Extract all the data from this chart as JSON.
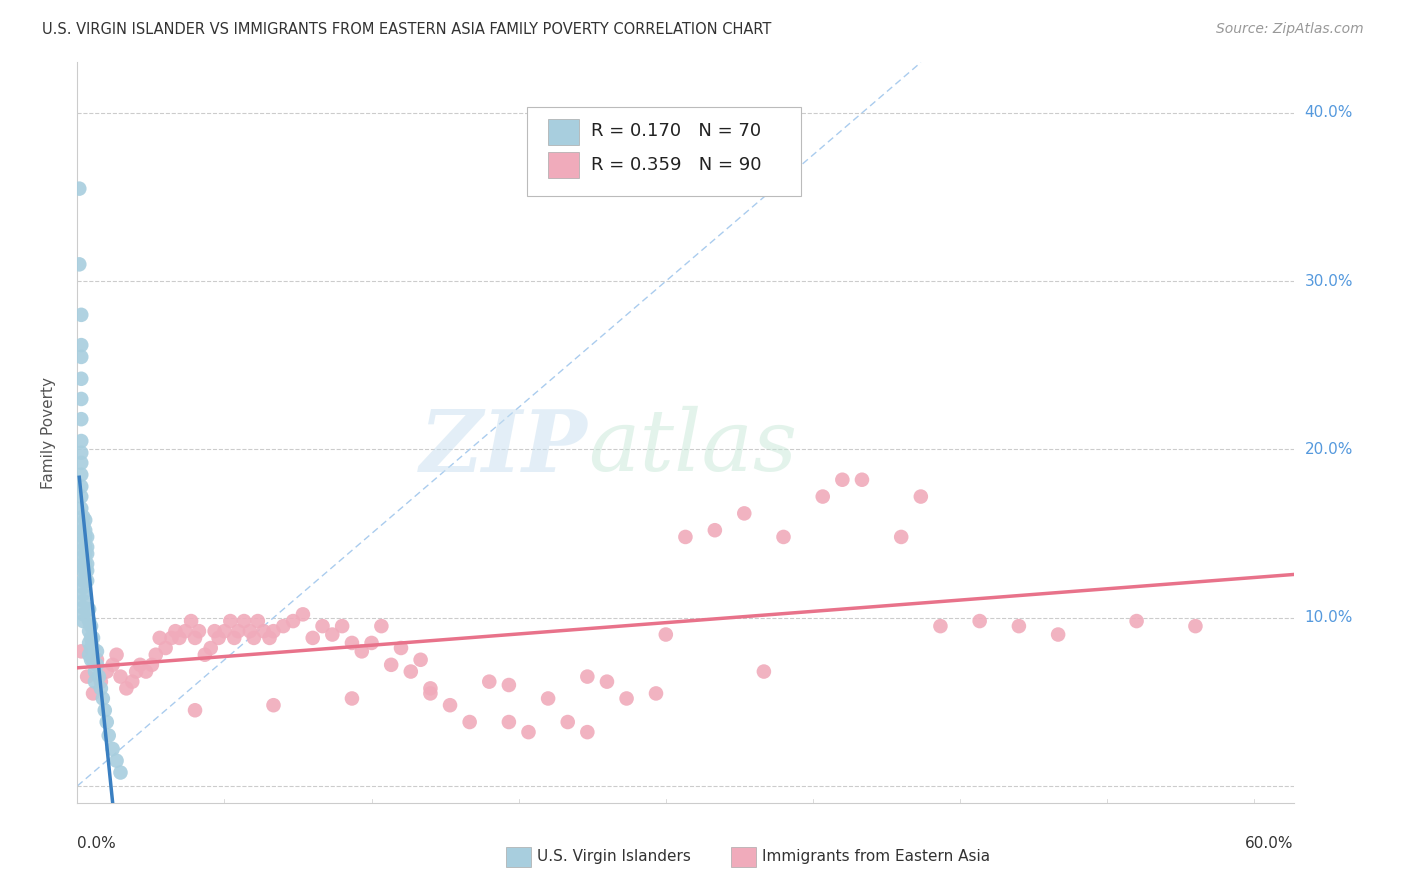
{
  "title": "U.S. VIRGIN ISLANDER VS IMMIGRANTS FROM EASTERN ASIA FAMILY POVERTY CORRELATION CHART",
  "source": "Source: ZipAtlas.com",
  "ylabel": "Family Poverty",
  "xlim": [
    0.0,
    0.62
  ],
  "ylim": [
    -0.01,
    0.43
  ],
  "yticks": [
    0.0,
    0.1,
    0.2,
    0.3,
    0.4
  ],
  "ytick_labels": [
    "",
    "10.0%",
    "20.0%",
    "30.0%",
    "40.0%"
  ],
  "xtick_left_label": "0.0%",
  "xtick_right_label": "60.0%",
  "legend1_R": "0.170",
  "legend1_N": "70",
  "legend2_R": "0.359",
  "legend2_N": "90",
  "blue_color": "#A8CEDE",
  "pink_color": "#F0ABBB",
  "blue_line_color": "#3A7FC1",
  "pink_line_color": "#E8728A",
  "diagonal_color": "#AACCEE",
  "watermark_zip": "ZIP",
  "watermark_atlas": "atlas",
  "blue_scatter_x": [
    0.001,
    0.001,
    0.002,
    0.002,
    0.002,
    0.002,
    0.002,
    0.002,
    0.002,
    0.002,
    0.002,
    0.002,
    0.002,
    0.002,
    0.002,
    0.003,
    0.003,
    0.003,
    0.003,
    0.003,
    0.003,
    0.003,
    0.003,
    0.003,
    0.003,
    0.003,
    0.003,
    0.003,
    0.003,
    0.003,
    0.003,
    0.004,
    0.004,
    0.004,
    0.004,
    0.004,
    0.004,
    0.004,
    0.004,
    0.005,
    0.005,
    0.005,
    0.005,
    0.005,
    0.005,
    0.006,
    0.006,
    0.006,
    0.006,
    0.006,
    0.007,
    0.007,
    0.007,
    0.007,
    0.008,
    0.008,
    0.008,
    0.009,
    0.009,
    0.01,
    0.01,
    0.011,
    0.012,
    0.013,
    0.014,
    0.015,
    0.016,
    0.018,
    0.02,
    0.022
  ],
  "blue_scatter_y": [
    0.355,
    0.31,
    0.28,
    0.262,
    0.255,
    0.242,
    0.23,
    0.218,
    0.205,
    0.198,
    0.192,
    0.185,
    0.178,
    0.172,
    0.165,
    0.16,
    0.155,
    0.152,
    0.148,
    0.145,
    0.14,
    0.136,
    0.132,
    0.128,
    0.122,
    0.118,
    0.114,
    0.11,
    0.106,
    0.102,
    0.098,
    0.158,
    0.152,
    0.148,
    0.142,
    0.138,
    0.132,
    0.128,
    0.122,
    0.148,
    0.142,
    0.138,
    0.132,
    0.128,
    0.122,
    0.105,
    0.098,
    0.092,
    0.085,
    0.078,
    0.095,
    0.088,
    0.082,
    0.075,
    0.088,
    0.082,
    0.075,
    0.068,
    0.062,
    0.08,
    0.072,
    0.065,
    0.058,
    0.052,
    0.045,
    0.038,
    0.03,
    0.022,
    0.015,
    0.008
  ],
  "pink_scatter_x": [
    0.002,
    0.005,
    0.008,
    0.01,
    0.012,
    0.015,
    0.018,
    0.02,
    0.022,
    0.025,
    0.028,
    0.03,
    0.032,
    0.035,
    0.038,
    0.04,
    0.042,
    0.045,
    0.048,
    0.05,
    0.052,
    0.055,
    0.058,
    0.06,
    0.062,
    0.065,
    0.068,
    0.07,
    0.072,
    0.075,
    0.078,
    0.08,
    0.082,
    0.085,
    0.088,
    0.09,
    0.092,
    0.095,
    0.098,
    0.1,
    0.105,
    0.11,
    0.115,
    0.12,
    0.125,
    0.13,
    0.135,
    0.14,
    0.145,
    0.15,
    0.155,
    0.16,
    0.165,
    0.17,
    0.175,
    0.18,
    0.19,
    0.2,
    0.21,
    0.22,
    0.23,
    0.24,
    0.25,
    0.26,
    0.27,
    0.28,
    0.295,
    0.31,
    0.325,
    0.34,
    0.36,
    0.38,
    0.4,
    0.42,
    0.44,
    0.46,
    0.48,
    0.5,
    0.54,
    0.57,
    0.39,
    0.43,
    0.35,
    0.3,
    0.26,
    0.22,
    0.18,
    0.14,
    0.1,
    0.06
  ],
  "pink_scatter_y": [
    0.08,
    0.065,
    0.055,
    0.075,
    0.062,
    0.068,
    0.072,
    0.078,
    0.065,
    0.058,
    0.062,
    0.068,
    0.072,
    0.068,
    0.072,
    0.078,
    0.088,
    0.082,
    0.088,
    0.092,
    0.088,
    0.092,
    0.098,
    0.088,
    0.092,
    0.078,
    0.082,
    0.092,
    0.088,
    0.092,
    0.098,
    0.088,
    0.092,
    0.098,
    0.092,
    0.088,
    0.098,
    0.092,
    0.088,
    0.092,
    0.095,
    0.098,
    0.102,
    0.088,
    0.095,
    0.09,
    0.095,
    0.085,
    0.08,
    0.085,
    0.095,
    0.072,
    0.082,
    0.068,
    0.075,
    0.058,
    0.048,
    0.038,
    0.062,
    0.038,
    0.032,
    0.052,
    0.038,
    0.032,
    0.062,
    0.052,
    0.055,
    0.148,
    0.152,
    0.162,
    0.148,
    0.172,
    0.182,
    0.148,
    0.095,
    0.098,
    0.095,
    0.09,
    0.098,
    0.095,
    0.182,
    0.172,
    0.068,
    0.09,
    0.065,
    0.06,
    0.055,
    0.052,
    0.048,
    0.045
  ]
}
